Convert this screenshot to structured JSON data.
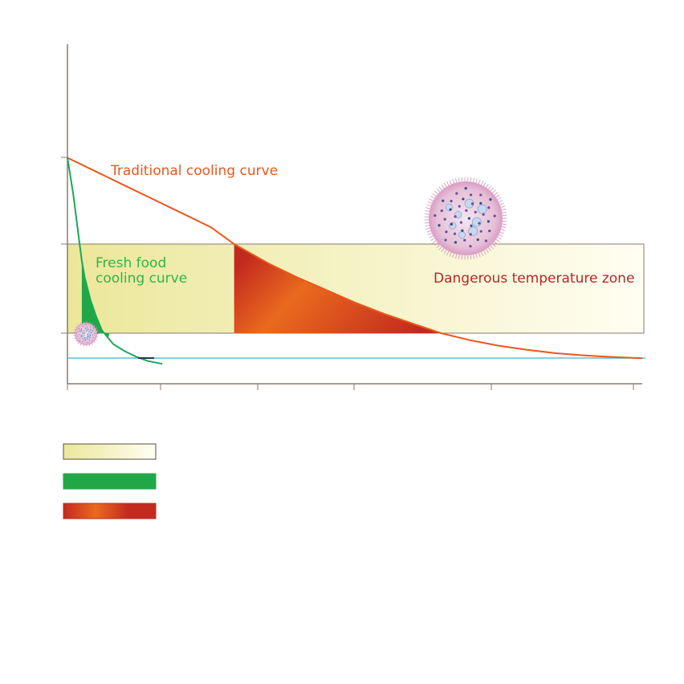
{
  "chart_data": {
    "type": "line",
    "title": "",
    "xlabel": "",
    "ylabel": "",
    "xlim": [
      0,
      100
    ],
    "ylim": [
      0,
      100
    ],
    "danger_zone": {
      "y_low": 30,
      "y_high": 62,
      "x_end": 100,
      "label": "Dangerous temperature zone"
    },
    "target_line": {
      "y": 21,
      "color": "#5cc0d6"
    },
    "series": [
      {
        "name": "Traditional cooling curve",
        "color": "#e8581c",
        "points": [
          [
            0,
            93
          ],
          [
            5,
            88
          ],
          [
            10,
            83
          ],
          [
            15,
            78
          ],
          [
            20,
            73
          ],
          [
            25,
            68
          ],
          [
            29,
            62
          ],
          [
            35,
            55
          ],
          [
            40,
            50
          ],
          [
            45,
            45.5
          ],
          [
            50,
            41
          ],
          [
            55,
            37
          ],
          [
            60,
            33.5
          ],
          [
            65,
            30
          ],
          [
            70,
            27.5
          ],
          [
            75,
            25.5
          ],
          [
            80,
            24
          ],
          [
            85,
            22.8
          ],
          [
            90,
            22
          ],
          [
            95,
            21.4
          ],
          [
            100,
            21
          ]
        ]
      },
      {
        "name": "Fresh food cooling curve",
        "color": "#1aa85a",
        "points": [
          [
            0,
            93
          ],
          [
            1,
            80
          ],
          [
            2,
            64
          ],
          [
            2.5,
            56
          ],
          [
            3,
            50
          ],
          [
            4,
            42
          ],
          [
            5,
            36
          ],
          [
            6,
            31
          ],
          [
            7,
            28.5
          ],
          [
            8,
            26
          ],
          [
            10,
            23.5
          ],
          [
            12,
            21.5
          ],
          [
            14,
            20
          ],
          [
            16.5,
            19
          ]
        ]
      }
    ],
    "legend": [
      {
        "swatch": "danger-zone",
        "label": ""
      },
      {
        "swatch": "fresh-exposure",
        "label": ""
      },
      {
        "swatch": "traditional-exposure",
        "label": ""
      }
    ],
    "colors": {
      "axis": "#8a7a6f",
      "zone_border": "#8a7a6f",
      "zone_fill_start": "#ece79a",
      "zone_fill_end": "#fffef2",
      "fresh_fill": "#22a747",
      "trad_fill_dark": "#c32a1e",
      "trad_fill_mid": "#e96a1e",
      "traditional_label": "#e8581c",
      "fresh_label": "#2db64a",
      "danger_label": "#b5262a"
    },
    "icons": [
      "bacteria-large-icon",
      "bacteria-small-icon"
    ]
  }
}
